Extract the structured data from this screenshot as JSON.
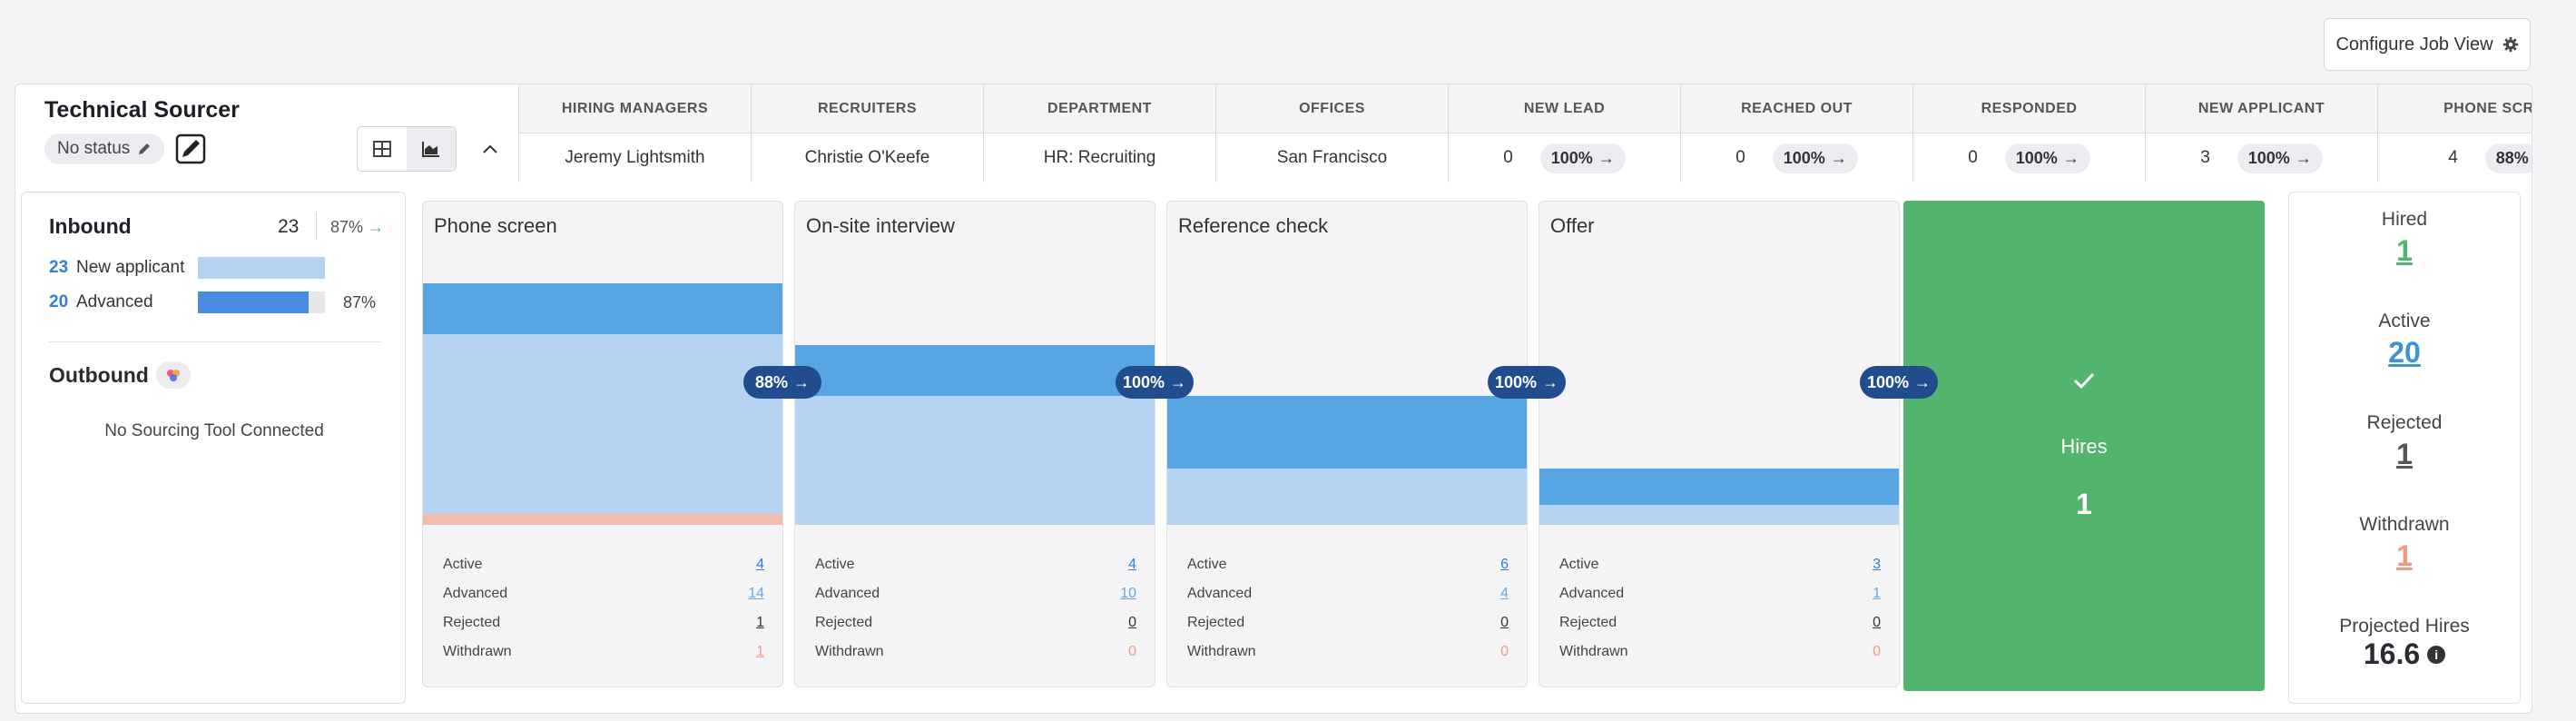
{
  "header": {
    "configure_label": "Configure Job View"
  },
  "job": {
    "title": "Technical Sourcer",
    "status": "No status"
  },
  "meta": {
    "columns": [
      {
        "head": "HIRING MANAGERS",
        "value": "Jeremy Lightsmith"
      },
      {
        "head": "RECRUITERS",
        "value": "Christie O'Keefe"
      },
      {
        "head": "DEPARTMENT",
        "value": "HR: Recruiting"
      },
      {
        "head": "OFFICES",
        "value": "San Francisco"
      },
      {
        "head": "NEW LEAD",
        "count": "0",
        "pct": "100%"
      },
      {
        "head": "REACHED OUT",
        "count": "0",
        "pct": "100%"
      },
      {
        "head": "RESPONDED",
        "count": "0",
        "pct": "100%"
      },
      {
        "head": "NEW APPLICANT",
        "count": "3",
        "pct": "100%"
      },
      {
        "head": "PHONE SCRE",
        "count": "4",
        "pct": "88%"
      }
    ]
  },
  "inbound": {
    "title": "Inbound",
    "count": "23",
    "pct": "87%",
    "rows": [
      {
        "num": "23",
        "label": "New applicant",
        "fill": 1.0,
        "pct": ""
      },
      {
        "num": "20",
        "label": "Advanced",
        "fill": 0.87,
        "pct": "87%"
      }
    ]
  },
  "outbound": {
    "title": "Outbound",
    "empty": "No Sourcing Tool Connected"
  },
  "stages": [
    {
      "title": "Phone screen",
      "conv": "88%",
      "active": "4",
      "advanced": "14",
      "rejected": "1",
      "withdrawn": "1"
    },
    {
      "title": "On-site interview",
      "conv": "100%",
      "active": "4",
      "advanced": "10",
      "rejected": "0",
      "withdrawn": "0"
    },
    {
      "title": "Reference check",
      "conv": "100%",
      "active": "6",
      "advanced": "4",
      "rejected": "0",
      "withdrawn": "0"
    },
    {
      "title": "Offer",
      "conv": "100%",
      "active": "3",
      "advanced": "1",
      "rejected": "0",
      "withdrawn": "0"
    }
  ],
  "stage_labels": {
    "active": "Active",
    "advanced": "Advanced",
    "rejected": "Rejected",
    "withdrawn": "Withdrawn"
  },
  "hires": {
    "label": "Hires",
    "count": "1"
  },
  "summary": {
    "hired_label": "Hired",
    "hired": "1",
    "active_label": "Active",
    "active": "20",
    "rejected_label": "Rejected",
    "rejected": "1",
    "withdrawn_label": "Withdrawn",
    "withdrawn": "1",
    "projected_label": "Projected Hires",
    "projected": "16.6"
  },
  "colors": {
    "active": "#57a5e3",
    "advanced": "#b7d3f3",
    "rejected": "#f4bcae",
    "hires": "#52b46d",
    "conv": "#214c8e"
  }
}
